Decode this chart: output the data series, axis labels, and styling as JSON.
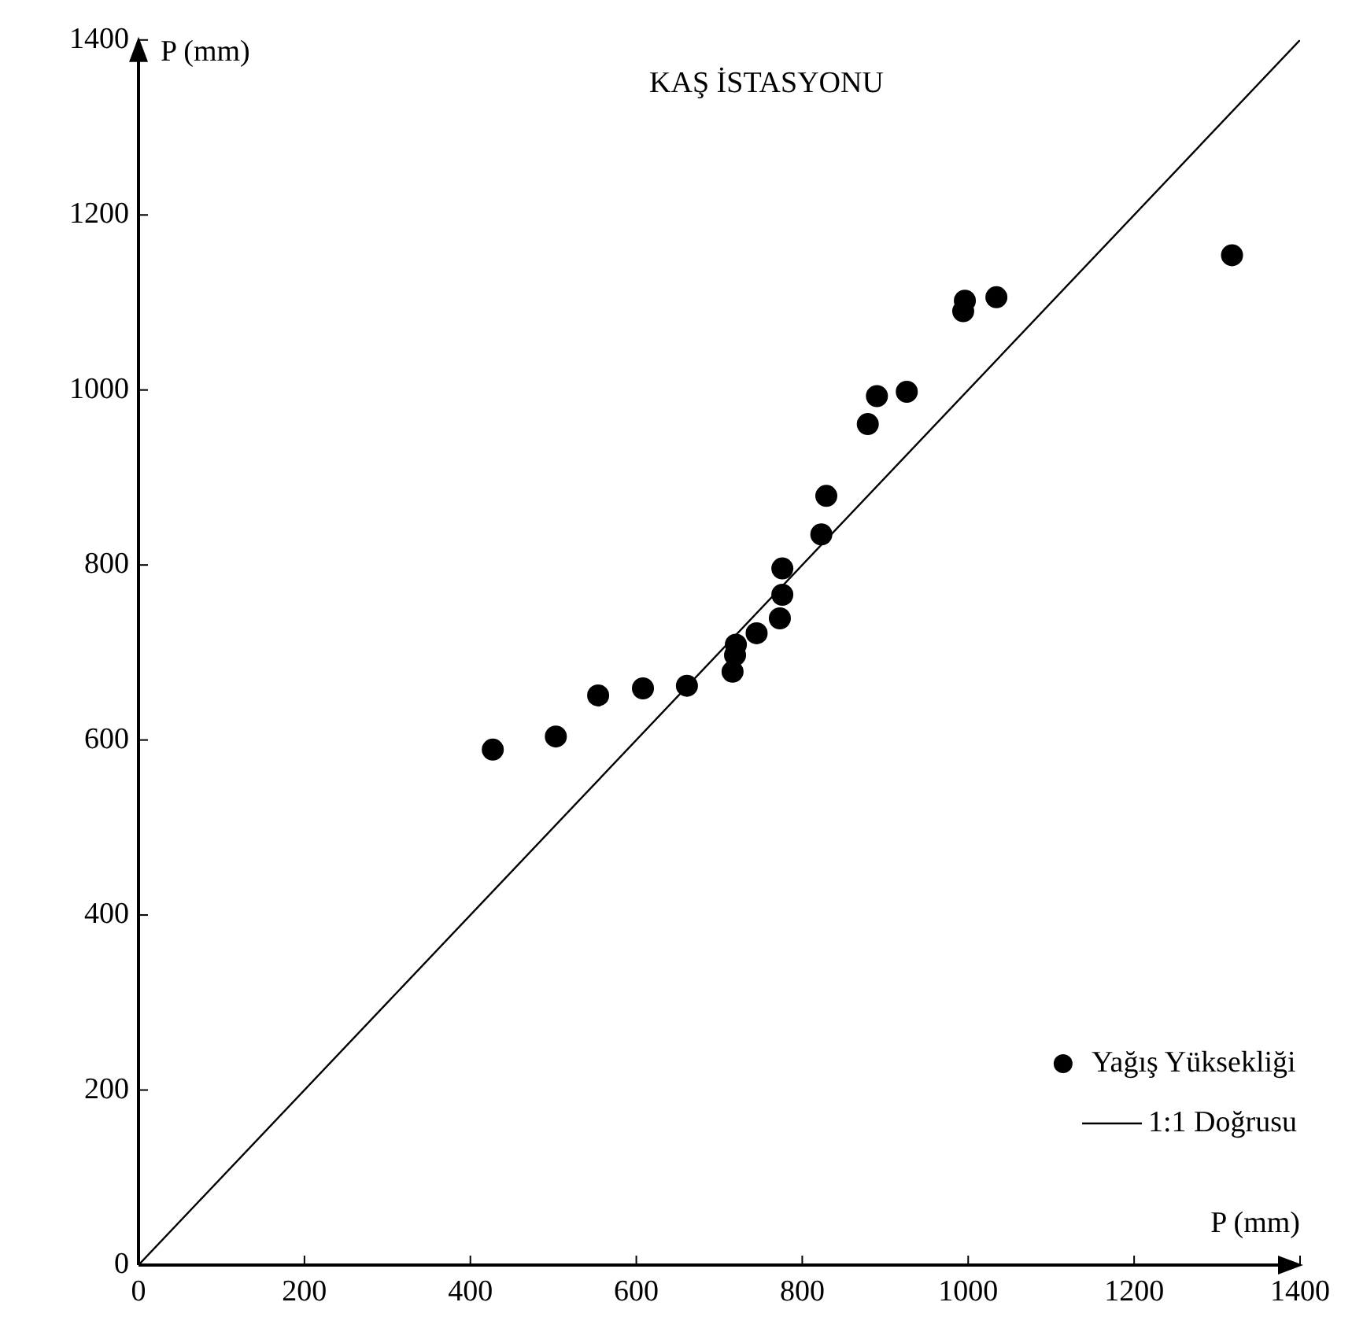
{
  "chart_data": {
    "type": "scatter",
    "title": "KAŞ İSTASYONU",
    "xlabel": "P (mm)",
    "ylabel": "P (mm)",
    "xlim": [
      0,
      1400
    ],
    "ylim": [
      0,
      1400
    ],
    "xticks": [
      0,
      200,
      400,
      600,
      800,
      1000,
      1200,
      1400
    ],
    "yticks": [
      0,
      200,
      400,
      600,
      800,
      1000,
      1200,
      1400
    ],
    "grid": false,
    "legend": "bottom right",
    "marker": "circle",
    "series": [
      {
        "name": "Yağış Yüksekliği",
        "color": "#000000",
        "x": [
          427,
          503,
          554,
          608,
          661,
          716,
          719,
          720,
          745,
          773,
          776,
          776,
          823,
          829,
          879,
          890,
          926,
          994,
          996,
          1034,
          1318
        ],
        "values": [
          589,
          604,
          651,
          659,
          662,
          678,
          697,
          709,
          722,
          739,
          766,
          796,
          835,
          879,
          961,
          993,
          998,
          1090,
          1102,
          1106,
          1154
        ]
      },
      {
        "name": "1:1 Doğrusu",
        "type": "line",
        "color": "#000000",
        "line_style": "solid",
        "marker": "none",
        "x": [
          0,
          1400
        ],
        "values": [
          0,
          1400
        ]
      }
    ]
  }
}
